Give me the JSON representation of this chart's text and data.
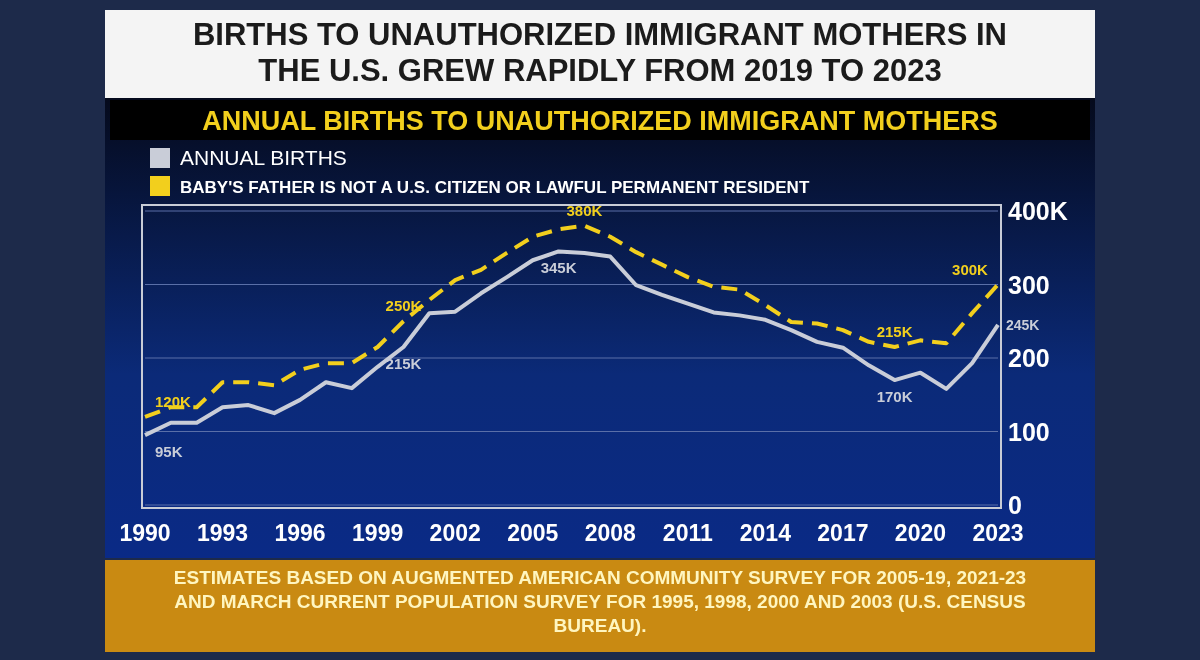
{
  "chart_data": {
    "type": "line",
    "title": "BIRTHS TO UNAUTHORIZED IMMIGRANT MOTHERS IN THE U.S. GREW RAPIDLY FROM 2019 TO 2023",
    "subtitle": "ANNUAL BIRTHS TO UNAUTHORIZED IMMIGRANT MOTHERS",
    "x": [
      1990,
      1991,
      1992,
      1993,
      1994,
      1995,
      1996,
      1997,
      1998,
      1999,
      2000,
      2001,
      2002,
      2003,
      2004,
      2005,
      2006,
      2007,
      2008,
      2009,
      2010,
      2011,
      2012,
      2013,
      2014,
      2015,
      2016,
      2017,
      2018,
      2019,
      2020,
      2021,
      2022,
      2023
    ],
    "series": [
      {
        "name": "ANNUAL BIRTHS",
        "color": "#c9cdd8",
        "line_style": "solid",
        "values": [
          95,
          112,
          112,
          133,
          136,
          125,
          143,
          167,
          159,
          188,
          215,
          261,
          263,
          288,
          310,
          333,
          345,
          343,
          338,
          299,
          286,
          274,
          262,
          258,
          252,
          238,
          222,
          214,
          190,
          170,
          180,
          158,
          193,
          245
        ],
        "value_labels": [
          "95K",
          null,
          null,
          null,
          null,
          null,
          null,
          null,
          null,
          null,
          "215K",
          null,
          null,
          null,
          null,
          null,
          "345K",
          null,
          null,
          null,
          null,
          null,
          null,
          null,
          null,
          null,
          null,
          null,
          null,
          "170K",
          null,
          null,
          null,
          "245K"
        ]
      },
      {
        "name": "BABY'S FATHER IS NOT A U.S. CITIZEN OR LAWFUL PERMANENT RESIDENT",
        "color": "#f2cf1d",
        "line_style": "dashed",
        "values": [
          120,
          133,
          133,
          167,
          167,
          163,
          184,
          193,
          193,
          215,
          250,
          279,
          306,
          320,
          343,
          365,
          375,
          380,
          365,
          344,
          327,
          310,
          297,
          293,
          272,
          249,
          247,
          238,
          222,
          215,
          224,
          220,
          261,
          300
        ],
        "value_labels": [
          "120K",
          null,
          null,
          null,
          null,
          null,
          null,
          null,
          null,
          null,
          "250K",
          null,
          null,
          null,
          null,
          null,
          null,
          "380K",
          null,
          null,
          null,
          null,
          null,
          null,
          null,
          null,
          null,
          null,
          null,
          "215K",
          null,
          null,
          null,
          "300K"
        ]
      }
    ],
    "xlim": [
      1990,
      2023
    ],
    "xticks": [
      1990,
      1993,
      1996,
      1999,
      2002,
      2005,
      2008,
      2011,
      2014,
      2017,
      2020,
      2023
    ],
    "ylim": [
      0,
      400
    ],
    "yticks": [
      0,
      100,
      200,
      300,
      {
        "value": 400,
        "label": "400K"
      }
    ],
    "grid": "y",
    "legend": "top left",
    "marker": "none",
    "annotations": [
      "ESTIMATES BASED ON AUGMENTED AMERICAN COMMUNITY SURVEY FOR 2005-19, 2021-23 AND MARCH CURRENT POPULATION SURVEY FOR 1995, 1998, 2000 AND 2003 (U.S. CENSUS BUREAU)."
    ]
  }
}
